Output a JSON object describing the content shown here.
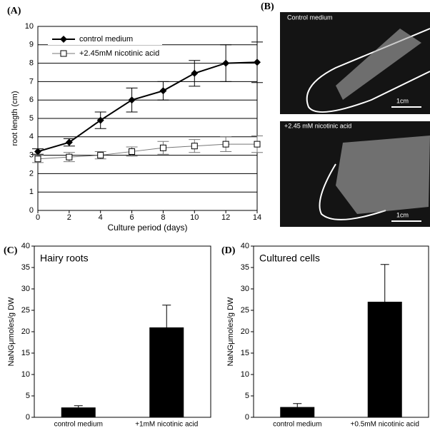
{
  "chart_data": [
    {
      "type": "line",
      "panel": "(A)",
      "xlabel": "Culture period (days)",
      "ylabel": "root length (cm)",
      "x": [
        0,
        2,
        4,
        6,
        8,
        10,
        12,
        14
      ],
      "xlim": [
        0,
        14
      ],
      "xticks": [
        0,
        2,
        4,
        6,
        8,
        10,
        12,
        14
      ],
      "ylim": [
        0,
        10
      ],
      "yticks": [
        0,
        1,
        2,
        3,
        4,
        5,
        6,
        7,
        8,
        9,
        10
      ],
      "grid": true,
      "legend": "upper left",
      "series": [
        {
          "name": "control medium",
          "color": "#000000",
          "marker": "diamond",
          "values": [
            3.2,
            3.7,
            4.9,
            6.0,
            6.5,
            7.45,
            8.0,
            8.05
          ],
          "errors": [
            0.15,
            0.2,
            0.45,
            0.65,
            0.5,
            0.7,
            1.0,
            1.1
          ]
        },
        {
          "name": "+2.45mM nicotinic acid",
          "color": "#777777",
          "marker": "square",
          "values": [
            2.8,
            2.9,
            3.0,
            3.2,
            3.4,
            3.5,
            3.6,
            3.6
          ],
          "errors": [
            0.2,
            0.25,
            0.2,
            0.25,
            0.35,
            0.35,
            0.4,
            0.45
          ]
        }
      ]
    },
    {
      "type": "bar",
      "panel": "(C)",
      "annotation": "Hairy roots",
      "ylabel": "NaNGμmoles/g DW",
      "color": "#000000",
      "categories": [
        "control medium",
        "+1mM nicotinic acid"
      ],
      "values": [
        2.3,
        21
      ],
      "errors": [
        0.4,
        5.2
      ],
      "ylim": [
        0,
        40
      ],
      "yticks": [
        0,
        5,
        10,
        15,
        20,
        25,
        30,
        35,
        40
      ]
    },
    {
      "type": "bar",
      "panel": "(D)",
      "annotation": "Cultured cells",
      "ylabel": "NaNGμmoles/g DW",
      "color": "#000000",
      "categories": [
        "control medium",
        "+0.5mM nicotinic acid"
      ],
      "values": [
        2.4,
        27
      ],
      "errors": [
        0.8,
        8.7
      ],
      "ylim": [
        0,
        40
      ],
      "yticks": [
        0,
        5,
        10,
        15,
        20,
        25,
        30,
        35,
        40
      ]
    }
  ],
  "figure_b": {
    "panel": "(B)",
    "images": [
      {
        "caption": "Control medium",
        "scale": "1cm"
      },
      {
        "caption": "+2.45 mM nicotinic acid",
        "scale": "1cm"
      }
    ]
  }
}
